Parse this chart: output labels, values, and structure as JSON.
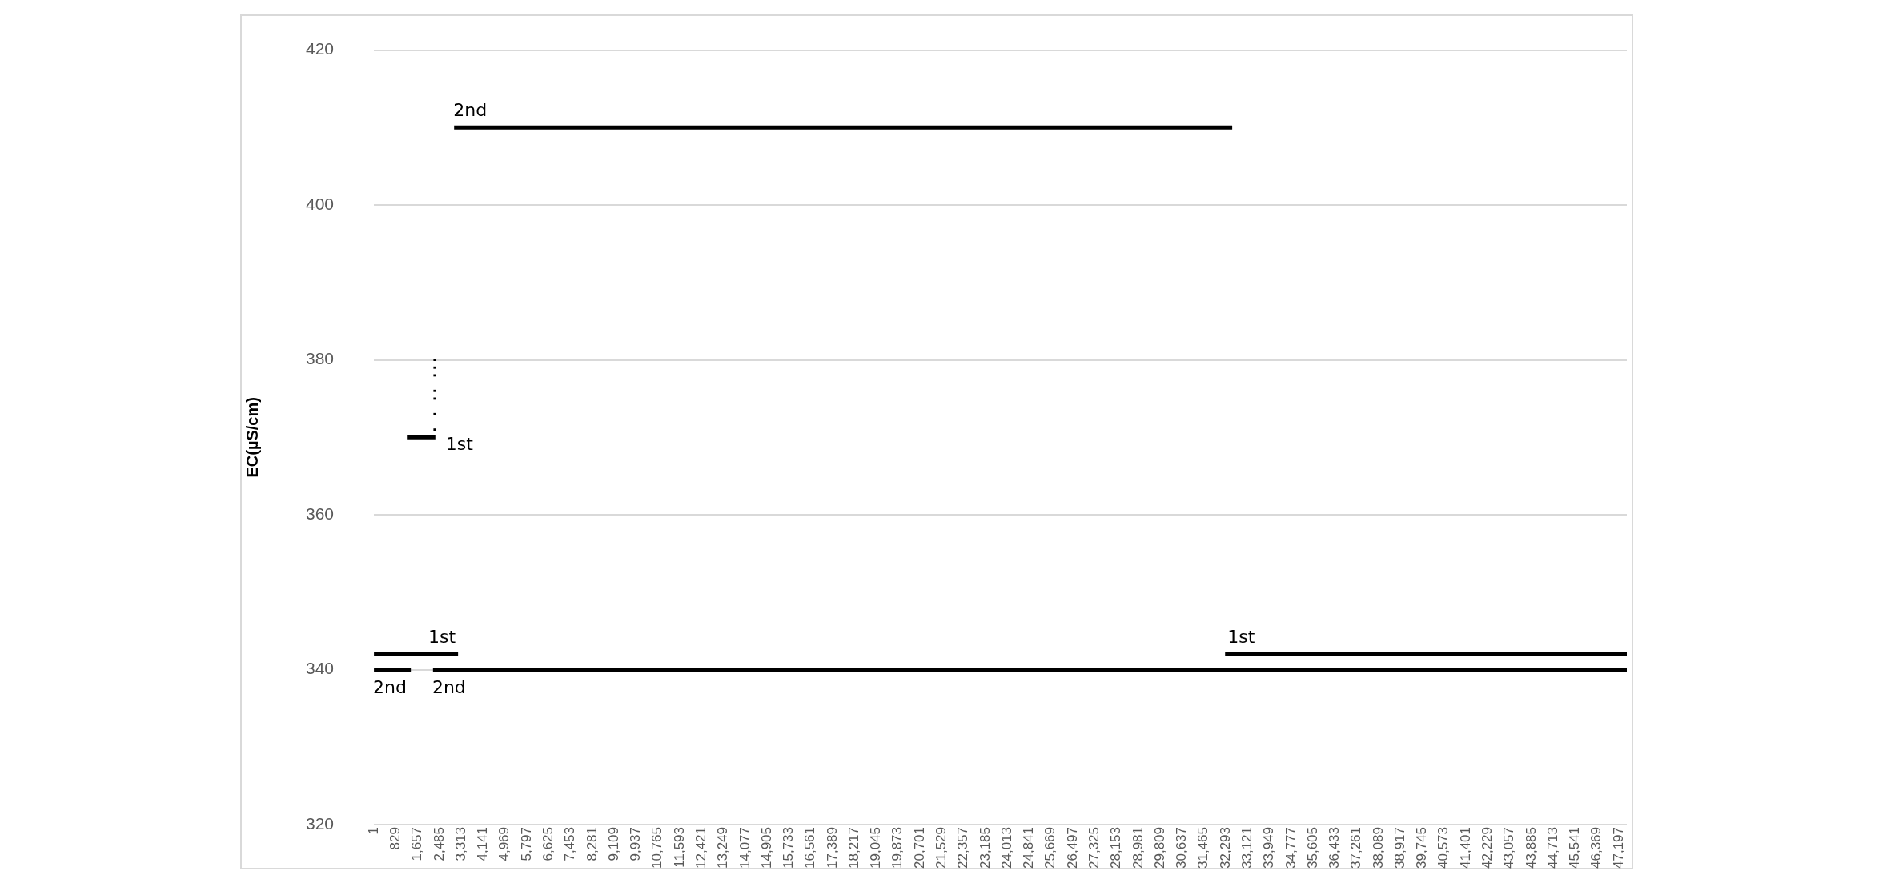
{
  "chart_data": {
    "type": "line",
    "ylabel": "EC(µS/cm)",
    "xlim": [
      0,
      47500
    ],
    "ylim": [
      320,
      420
    ],
    "yticks": [
      320,
      340,
      360,
      380,
      400,
      420
    ],
    "xticks": [
      1,
      829,
      {
        "value": 1657,
        "label": "1,657"
      },
      {
        "value": 2485,
        "label": "2,485"
      },
      {
        "value": 3313,
        "label": "3,313"
      },
      {
        "value": 4141,
        "label": "4,141"
      },
      {
        "value": 4969,
        "label": "4,969"
      },
      {
        "value": 5797,
        "label": "5,797"
      },
      {
        "value": 6625,
        "label": "6,625"
      },
      {
        "value": 7453,
        "label": "7,453"
      },
      {
        "value": 8281,
        "label": "8,281"
      },
      {
        "value": 9109,
        "label": "9,109"
      },
      {
        "value": 9937,
        "label": "9,937"
      },
      {
        "value": 10765,
        "label": "10,765"
      },
      {
        "value": 11593,
        "label": "11,593"
      },
      {
        "value": 12421,
        "label": "12,421"
      },
      {
        "value": 13249,
        "label": "13,249"
      },
      {
        "value": 14077,
        "label": "14,077"
      },
      {
        "value": 14905,
        "label": "14,905"
      },
      {
        "value": 15733,
        "label": "15,733"
      },
      {
        "value": 16561,
        "label": "16,561"
      },
      {
        "value": 17389,
        "label": "17,389"
      },
      {
        "value": 18217,
        "label": "18,217"
      },
      {
        "value": 19045,
        "label": "19,045"
      },
      {
        "value": 19873,
        "label": "19,873"
      },
      {
        "value": 20701,
        "label": "20,701"
      },
      {
        "value": 21529,
        "label": "21,529"
      },
      {
        "value": 22357,
        "label": "22,357"
      },
      {
        "value": 23185,
        "label": "23,185"
      },
      {
        "value": 24013,
        "label": "24,013"
      },
      {
        "value": 24841,
        "label": "24,841"
      },
      {
        "value": 25669,
        "label": "25,669"
      },
      {
        "value": 26497,
        "label": "26,497"
      },
      {
        "value": 27325,
        "label": "27,325"
      },
      {
        "value": 28153,
        "label": "28,153"
      },
      {
        "value": 28981,
        "label": "28,981"
      },
      {
        "value": 29809,
        "label": "29,809"
      },
      {
        "value": 30637,
        "label": "30,637"
      },
      {
        "value": 31465,
        "label": "31,465"
      },
      {
        "value": 32293,
        "label": "32,293"
      },
      {
        "value": 33121,
        "label": "33,121"
      },
      {
        "value": 33949,
        "label": "33,949"
      },
      {
        "value": 34777,
        "label": "34,777"
      },
      {
        "value": 35605,
        "label": "35,605"
      },
      {
        "value": 36433,
        "label": "36,433"
      },
      {
        "value": 37261,
        "label": "37,261"
      },
      {
        "value": 38089,
        "label": "38,089"
      },
      {
        "value": 38917,
        "label": "38,917"
      },
      {
        "value": 39745,
        "label": "39,745"
      },
      {
        "value": 40573,
        "label": "40,573"
      },
      {
        "value": 41401,
        "label": "41,401"
      },
      {
        "value": 42229,
        "label": "42,229"
      },
      {
        "value": 43057,
        "label": "43,057"
      },
      {
        "value": 43885,
        "label": "43,885"
      },
      {
        "value": 44713,
        "label": "44,713"
      },
      {
        "value": 45541,
        "label": "45,541"
      },
      {
        "value": 46369,
        "label": "46,369"
      },
      {
        "value": 47197,
        "label": "47,197"
      }
    ],
    "grid": "y",
    "legend": false,
    "marker": "none",
    "line_style": "solid",
    "series": [
      {
        "name": "1st",
        "color": "#000000",
        "x": [
          1,
          3190
        ],
        "values": [
          342,
          342
        ]
      },
      {
        "name": "1st",
        "color": "#000000",
        "x": [
          1250,
          2330
        ],
        "values": [
          370,
          370
        ]
      },
      {
        "type": "scatter",
        "marker": "square",
        "color": "#000000",
        "x": [
          2300,
          2300,
          2300,
          2300,
          2300,
          2300,
          2300
        ],
        "values": [
          371,
          373,
          375,
          376,
          378,
          379,
          380
        ]
      },
      {
        "name": "1st",
        "color": "#000000",
        "x": [
          32270,
          47500
        ],
        "values": [
          342,
          342
        ]
      },
      {
        "name": "2nd",
        "color": "#000000",
        "x": [
          1,
          1400
        ],
        "values": [
          340,
          340
        ]
      },
      {
        "name": "2nd",
        "color": "#000000",
        "x": [
          2240,
          47500
        ],
        "values": [
          340,
          340
        ]
      },
      {
        "name": "2nd",
        "color": "#000000",
        "x": [
          3040,
          32540
        ],
        "values": [
          410,
          410
        ]
      }
    ]
  }
}
